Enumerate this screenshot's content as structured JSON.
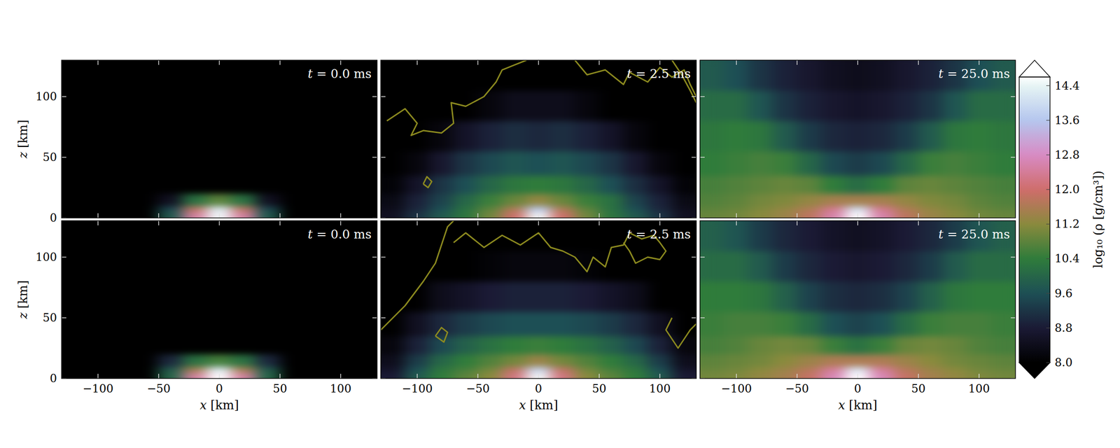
{
  "chart_data": {
    "type": "heatmap",
    "x_label": "x [km]",
    "y_label": "z [km]",
    "xlim": [
      -130,
      130
    ],
    "ylim": [
      0,
      130
    ],
    "xticks": [
      {
        "value": -100,
        "label": "−100"
      },
      {
        "value": -50,
        "label": "−50"
      },
      0,
      50,
      100
    ],
    "yticks": [
      0,
      50,
      100
    ],
    "x_edges": [
      -130,
      -110,
      -90,
      -70,
      -50,
      -30,
      -10,
      10,
      30,
      50,
      70,
      90,
      110,
      130
    ],
    "y_edges": [
      0,
      5,
      10,
      20,
      35,
      55,
      80,
      105,
      130
    ],
    "colorbar": {
      "label": "log₁₀ (ρ [g/cm³])",
      "range": [
        8,
        14.6
      ],
      "ticks": [
        {
          "value": 8,
          "label": "8.0"
        },
        8.8,
        9.6,
        10.4,
        11.2,
        {
          "value": 12,
          "label": "12.0"
        },
        12.8,
        13.6,
        14.4
      ]
    },
    "panels": [
      {
        "title": "t = 0.0 ms",
        "tick_labels": "y",
        "values": [
          [
            8,
            8,
            8,
            8,
            9.8,
            12.5,
            14.5,
            12.5,
            9.8,
            8,
            8,
            8,
            8
          ],
          [
            8,
            8,
            8,
            8,
            9.5,
            11.8,
            14.2,
            11.8,
            9.5,
            8,
            8,
            8,
            8
          ],
          [
            8,
            8,
            8,
            8,
            8.5,
            10.2,
            10.8,
            10.2,
            8.5,
            8,
            8,
            8,
            8
          ],
          [
            8,
            8,
            8,
            8,
            8,
            8,
            8,
            8,
            8,
            8,
            8,
            8,
            8
          ],
          [
            8,
            8,
            8,
            8,
            8,
            8,
            8,
            8,
            8,
            8,
            8,
            8,
            8
          ],
          [
            8,
            8,
            8,
            8,
            8,
            8,
            8,
            8,
            8,
            8,
            8,
            8,
            8
          ],
          [
            8,
            8,
            8,
            8,
            8,
            8,
            8,
            8,
            8,
            8,
            8,
            8,
            8
          ],
          [
            8,
            8,
            8,
            8,
            8,
            8,
            8,
            8,
            8,
            8,
            8,
            8,
            8
          ]
        ]
      },
      {
        "title": "t = 2.5 ms",
        "tick_labels": false,
        "values": [
          [
            8.5,
            9.2,
            9.8,
            10.3,
            11,
            12,
            14.5,
            12,
            11,
            10.3,
            9.8,
            9.2,
            8.5
          ],
          [
            8.4,
            9,
            9.6,
            10.2,
            10.8,
            11.6,
            13.6,
            11.6,
            10.8,
            10.2,
            9.6,
            9,
            8.4
          ],
          [
            8.3,
            8.9,
            9.4,
            10,
            10.5,
            10.9,
            11.3,
            10.9,
            10.5,
            10.2,
            9.4,
            8.9,
            8.3
          ],
          [
            8.1,
            8.6,
            9.2,
            9.6,
            10,
            10.3,
            10.4,
            10.3,
            10,
            9.6,
            9.1,
            8.6,
            8.1
          ],
          [
            8,
            8.2,
            8.7,
            9.2,
            9.5,
            9.7,
            9.6,
            9.7,
            9.5,
            9.2,
            8.7,
            8.2,
            8
          ],
          [
            8,
            8,
            8.2,
            8.6,
            8.9,
            9.1,
            9,
            9.1,
            8.9,
            8.6,
            8.2,
            8,
            8
          ],
          [
            8,
            8,
            8,
            8,
            8.2,
            8.4,
            8.4,
            8.4,
            8.2,
            8,
            8,
            8,
            8
          ],
          [
            8,
            8,
            8,
            8,
            8,
            8,
            8,
            8,
            8,
            8,
            8,
            8,
            8
          ]
        ],
        "contours": [
          {
            "x": [
              -125,
              -110,
              -100,
              -105,
              -95,
              -80,
              -70,
              -72,
              -60,
              -45,
              -35,
              -30,
              -20,
              -10
            ],
            "z": [
              80,
              90,
              78,
              68,
              72,
              70,
              78,
              95,
              92,
              100,
              112,
              122,
              126,
              130
            ]
          },
          {
            "x": [
              30,
              40,
              55,
              70,
              75,
              90,
              100,
              110,
              120,
              125,
              130
            ],
            "z": [
              130,
              118,
              122,
              110,
              120,
              112,
              124,
              116,
              122,
              110,
              100
            ]
          },
          {
            "x": [
              -95,
              -92,
              -88,
              -91,
              -95
            ],
            "z": [
              28,
              34,
              30,
              25,
              28
            ]
          },
          {
            "x": [
              110,
              118,
              125,
              130
            ],
            "z": [
              130,
              118,
              105,
              95
            ]
          }
        ]
      },
      {
        "title": "t = 25.0 ms",
        "tick_labels": false,
        "values": [
          [
            10.9,
            11,
            11.2,
            11.4,
            11.8,
            12.6,
            14.6,
            12.6,
            11.8,
            11.4,
            11.2,
            11,
            10.9
          ],
          [
            10.8,
            10.9,
            11.1,
            11.3,
            11.6,
            12.3,
            14,
            12.3,
            11.6,
            11.3,
            11.1,
            10.9,
            10.8
          ],
          [
            10.7,
            10.8,
            11,
            11.1,
            11.3,
            11.5,
            11.5,
            11.5,
            11.3,
            11.1,
            11,
            10.8,
            10.7
          ],
          [
            10.6,
            10.7,
            10.8,
            10.9,
            10.8,
            10.4,
            10.1,
            10.4,
            10.8,
            10.9,
            10.8,
            10.7,
            10.6
          ],
          [
            10.4,
            10.5,
            10.6,
            10.5,
            10,
            9.5,
            9.3,
            9.5,
            10,
            10.5,
            10.6,
            10.5,
            10.4
          ],
          [
            10.3,
            10.4,
            10.3,
            9.8,
            9.3,
            9,
            8.9,
            9,
            9.3,
            9.8,
            10.3,
            10.4,
            10.3
          ],
          [
            10.1,
            10.1,
            9.7,
            9.2,
            8.9,
            8.7,
            8.6,
            8.7,
            8.9,
            9.2,
            9.7,
            10.1,
            10.1
          ],
          [
            9.8,
            9.6,
            9.2,
            8.9,
            8.7,
            8.5,
            8.4,
            8.5,
            8.7,
            8.9,
            9.2,
            9.6,
            9.8
          ]
        ]
      },
      {
        "title": "t = 0.0 ms",
        "tick_labels": true,
        "values": [
          [
            8,
            8,
            8,
            8,
            10,
            12.5,
            14.6,
            12.5,
            10,
            8,
            8,
            8,
            8
          ],
          [
            8,
            8,
            8,
            8,
            9.8,
            11.5,
            14.2,
            11.5,
            9.8,
            8,
            8,
            8,
            8
          ],
          [
            8,
            8,
            8,
            8,
            9,
            10.2,
            10.6,
            10.2,
            9,
            8,
            8,
            8,
            8
          ],
          [
            8,
            8,
            8,
            8,
            8,
            8,
            8,
            8,
            8,
            8,
            8,
            8,
            8
          ],
          [
            8,
            8,
            8,
            8,
            8,
            8,
            8,
            8,
            8,
            8,
            8,
            8,
            8
          ],
          [
            8,
            8,
            8,
            8,
            8,
            8,
            8,
            8,
            8,
            8,
            8,
            8,
            8
          ],
          [
            8,
            8,
            8,
            8,
            8,
            8,
            8,
            8,
            8,
            8,
            8,
            8,
            8
          ],
          [
            8,
            8,
            8,
            8,
            8,
            8,
            8,
            8,
            8,
            8,
            8,
            8,
            8
          ]
        ]
      },
      {
        "title": "t = 2.5 ms",
        "tick_labels": "x",
        "values": [
          [
            8.8,
            9.8,
            10.4,
            10.8,
            11.2,
            12.2,
            14.5,
            12.2,
            11.2,
            10.8,
            10.4,
            9.8,
            8.8
          ],
          [
            8.6,
            9.6,
            10.3,
            10.6,
            11,
            11.8,
            13.8,
            11.8,
            11,
            10.6,
            10.3,
            9.6,
            8.6
          ],
          [
            8.4,
            9.3,
            10,
            10.4,
            10.7,
            11,
            11.4,
            11,
            10.7,
            10.4,
            10,
            9.3,
            8.4
          ],
          [
            8.2,
            8.9,
            9.5,
            9.9,
            10.2,
            10.4,
            10.5,
            10.4,
            10.2,
            9.9,
            9.5,
            8.9,
            8.2
          ],
          [
            8,
            8.5,
            9,
            9.3,
            9.5,
            9.6,
            9.6,
            9.6,
            9.5,
            9.3,
            9,
            8.5,
            8
          ],
          [
            8,
            8,
            8.4,
            8.6,
            8.8,
            8.9,
            8.9,
            8.9,
            8.8,
            8.6,
            8.4,
            8,
            8
          ],
          [
            8,
            8,
            8,
            8,
            8.1,
            8.2,
            8.2,
            8.2,
            8.1,
            8,
            8,
            8,
            8
          ],
          [
            8,
            8,
            8,
            8,
            8,
            8,
            8,
            8,
            8,
            8,
            8,
            8,
            8
          ]
        ],
        "contours": [
          {
            "x": [
              -130,
              -110,
              -95,
              -85,
              -80,
              -75,
              -70
            ],
            "z": [
              40,
              60,
              80,
              95,
              110,
              125,
              130
            ]
          },
          {
            "x": [
              -70,
              -60,
              -45,
              -30,
              -15,
              0,
              10,
              20,
              30,
              40,
              45,
              55,
              60,
              70,
              75,
              85,
              95,
              100,
              105,
              100,
              90,
              80,
              75,
              70
            ],
            "z": [
              112,
              120,
              108,
              118,
              110,
              120,
              108,
              105,
              100,
              88,
              100,
              92,
              108,
              110,
              120,
              115,
              118,
              112,
              105,
              98,
              100,
              95,
              105,
              112
            ]
          },
          {
            "x": [
              -85,
              -80,
              -75,
              -78,
              -85
            ],
            "z": [
              35,
              42,
              38,
              30,
              35
            ]
          },
          {
            "x": [
              110,
              105,
              115,
              125,
              130
            ],
            "z": [
              50,
              40,
              25,
              40,
              45
            ]
          }
        ]
      },
      {
        "title": "t = 25.0 ms",
        "tick_labels": "x",
        "values": [
          [
            11,
            11.1,
            11.3,
            11.5,
            11.9,
            12.7,
            14.6,
            12.7,
            11.9,
            11.5,
            11.3,
            11.1,
            11
          ],
          [
            10.9,
            11,
            11.2,
            11.4,
            11.7,
            12.4,
            14.1,
            12.4,
            11.7,
            11.4,
            11.2,
            11,
            10.9
          ],
          [
            10.8,
            10.9,
            11,
            11.2,
            11.4,
            11.6,
            11.6,
            11.6,
            11.4,
            11.2,
            11,
            10.9,
            10.8
          ],
          [
            10.6,
            10.7,
            10.9,
            11,
            10.9,
            10.5,
            10.2,
            10.5,
            10.9,
            11,
            10.9,
            10.7,
            10.6
          ],
          [
            10.5,
            10.6,
            10.6,
            10.5,
            10.1,
            9.6,
            9.4,
            9.6,
            10.1,
            10.5,
            10.6,
            10.6,
            10.5
          ],
          [
            10.4,
            10.4,
            10.3,
            9.9,
            9.4,
            9.1,
            9,
            9.1,
            9.4,
            9.9,
            10.3,
            10.4,
            10.4
          ],
          [
            10.1,
            10.1,
            9.8,
            9.3,
            9,
            8.8,
            8.7,
            8.8,
            9,
            9.3,
            9.8,
            10.1,
            10.1
          ],
          [
            9.9,
            9.7,
            9.3,
            9,
            8.8,
            8.6,
            8.5,
            8.6,
            8.8,
            9,
            9.3,
            9.7,
            9.9
          ]
        ]
      }
    ]
  }
}
